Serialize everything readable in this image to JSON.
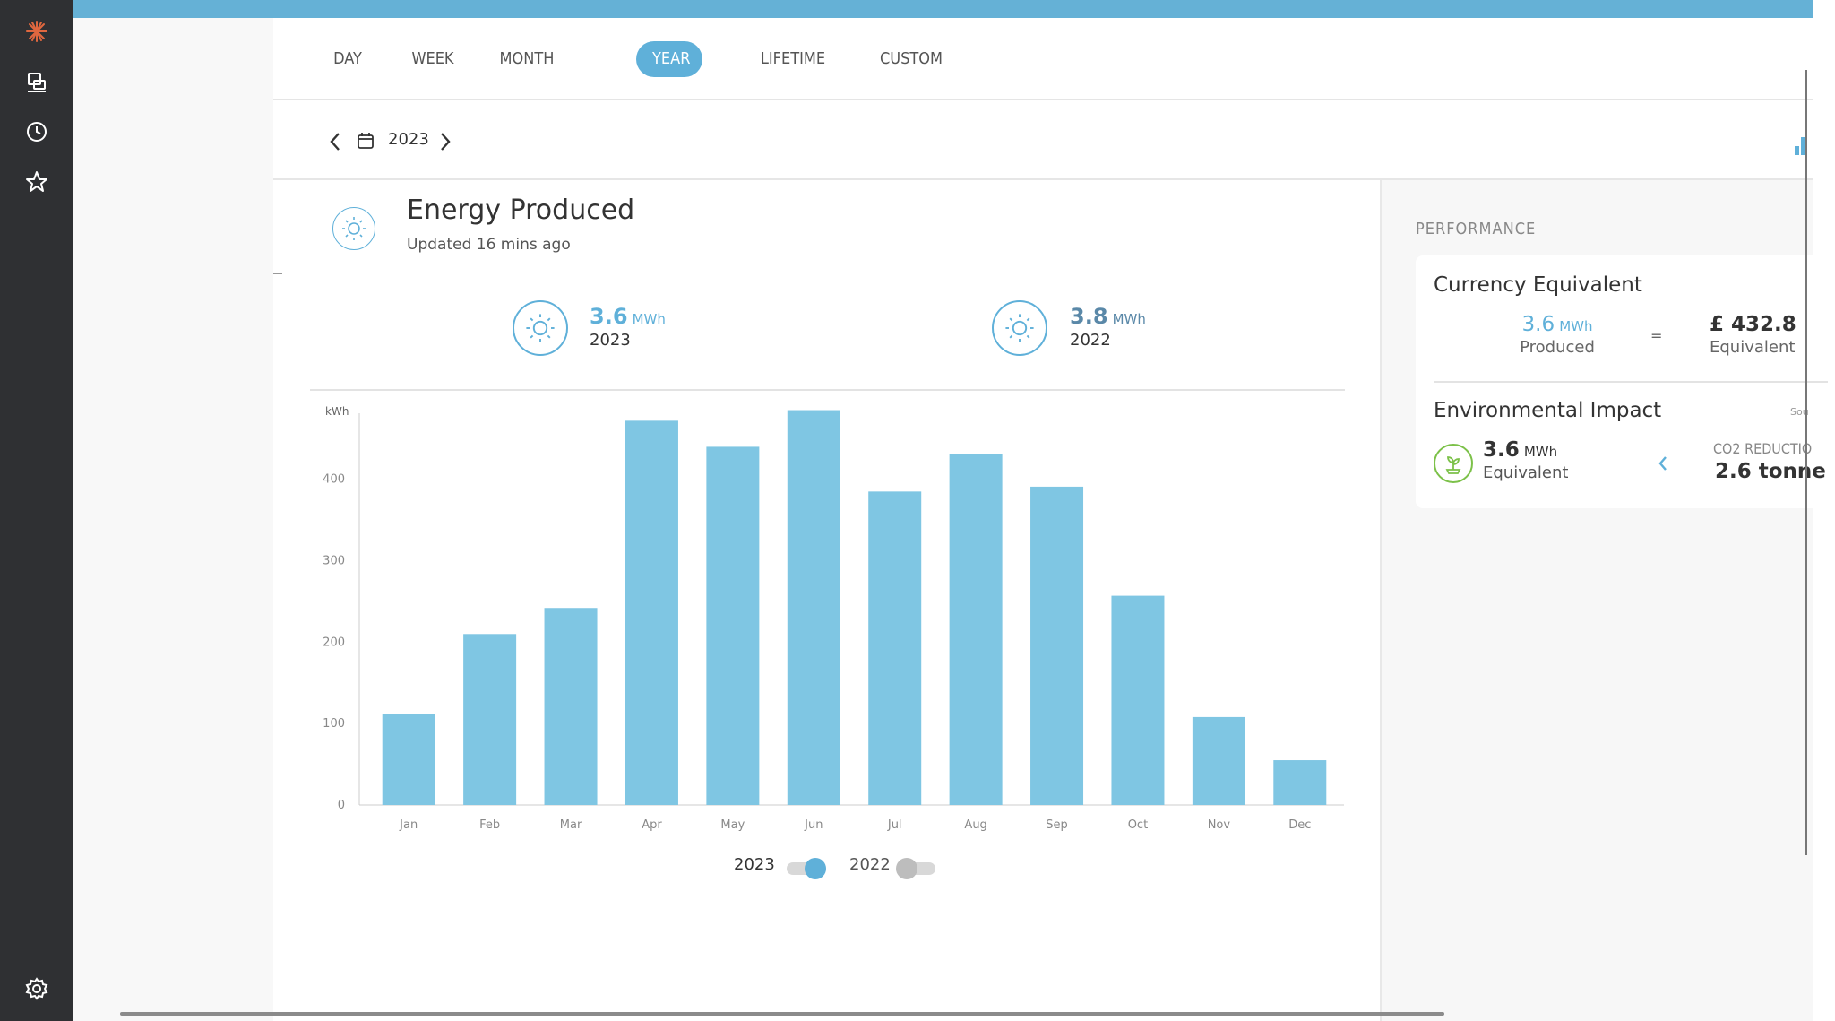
{
  "colors": {
    "accent": "#5fb0d9",
    "bar": "#7fc6e3",
    "sidebar": "#2f3033",
    "green": "#7cc149"
  },
  "sidebar": {
    "icons": [
      "sun-logo-icon",
      "devices-icon",
      "clock-icon",
      "star-icon",
      "settings-icon"
    ]
  },
  "tabs": [
    "DAY",
    "WEEK",
    "MONTH",
    "YEAR",
    "LIFETIME",
    "CUSTOM"
  ],
  "active_tab": "YEAR",
  "date_selector": {
    "value": "2023"
  },
  "energy": {
    "title": "Energy Produced",
    "updated": "Updated 16 mins ago",
    "kpis": [
      {
        "value": "3.6",
        "unit": "MWh",
        "year": "2023"
      },
      {
        "value": "3.8",
        "unit": "MWh",
        "year": "2022"
      }
    ]
  },
  "chart_data": {
    "type": "bar",
    "ylabel": "kWh",
    "ylim": [
      0,
      490
    ],
    "yticks": [
      0,
      100,
      200,
      300,
      400
    ],
    "categories": [
      "Jan",
      "Feb",
      "Mar",
      "Apr",
      "May",
      "Jun",
      "Jul",
      "Aug",
      "Sep",
      "Oct",
      "Nov",
      "Dec"
    ],
    "series": [
      {
        "name": "2023",
        "values": [
          112,
          210,
          242,
          472,
          440,
          485,
          385,
          431,
          391,
          257,
          108,
          55
        ]
      }
    ],
    "grid": false
  },
  "legend": [
    {
      "label": "2023",
      "on": true
    },
    {
      "label": "2022",
      "on": false
    }
  ],
  "performance": {
    "heading": "PERFORMANCE",
    "currency": {
      "title": "Currency Equivalent",
      "produced_value": "3.6",
      "produced_unit": "MWh",
      "produced_label": "Produced",
      "equals": "=",
      "equivalent_value": "£ 432.8",
      "equivalent_label": "Equivalent"
    },
    "environment": {
      "title": "Environmental Impact",
      "source_stub": "Sou",
      "value": "3.6",
      "unit": "MWh",
      "label": "Equivalent",
      "co2_label": "CO2 REDUCTIO",
      "co2_value": "2.6 tonne"
    }
  }
}
